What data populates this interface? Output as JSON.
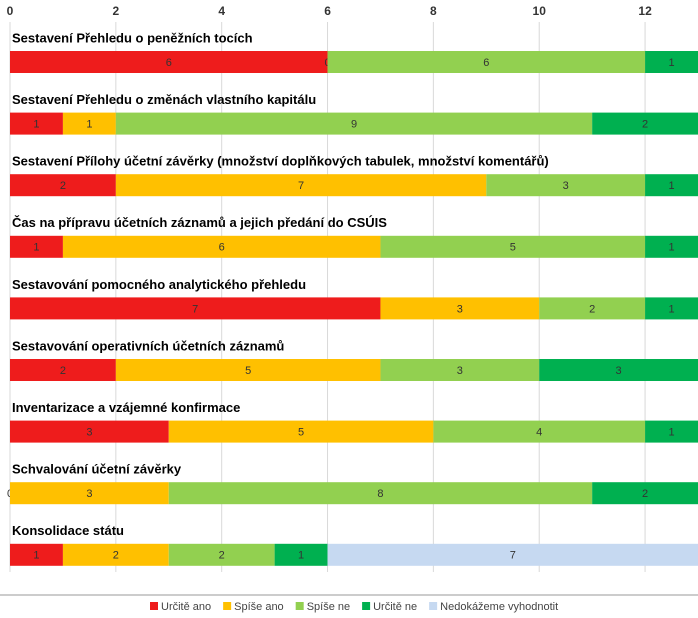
{
  "chart_data": {
    "type": "stacked-bar-horizontal",
    "categories": [
      "Sestavení Přehledu o peněžních tocích",
      "Sestavení Přehledu o změnách vlastního kapitálu",
      "Sestavení Přílohy účetní závěrky (množství doplňkových tabulek, množství komentářů)",
      "Čas na přípravu účetních záznamů a  jejich předání do CSÚIS",
      "Sestavování pomocného analytického přehledu",
      "Sestavování operativních účetních záznamů",
      "Inventarizace a vzájemné konfirmace",
      "Schvalování účetní závěrky",
      "Konsolidace státu"
    ],
    "series": [
      {
        "name": "Určitě ano",
        "color": "#ee1c1c",
        "values": [
          6,
          1,
          2,
          1,
          7,
          2,
          3,
          0,
          1
        ]
      },
      {
        "name": "Spíše ano",
        "color": "#ffc000",
        "values": [
          0,
          1,
          7,
          6,
          3,
          5,
          5,
          3,
          2
        ]
      },
      {
        "name": "Spíše ne",
        "color": "#92d050",
        "values": [
          6,
          9,
          3,
          5,
          2,
          3,
          4,
          8,
          2
        ]
      },
      {
        "name": "Určitě ne",
        "color": "#00b050",
        "values": [
          1,
          2,
          1,
          1,
          1,
          3,
          1,
          2,
          1
        ]
      },
      {
        "name": "Nedokážeme vyhodnotit",
        "color": "#c6d9f1",
        "values": [
          null,
          null,
          null,
          null,
          null,
          null,
          null,
          null,
          7
        ]
      }
    ],
    "xlim": [
      0,
      13
    ],
    "xticks": [
      0,
      2,
      4,
      6,
      8,
      10,
      12
    ],
    "grid": true,
    "legend": "bottom"
  }
}
